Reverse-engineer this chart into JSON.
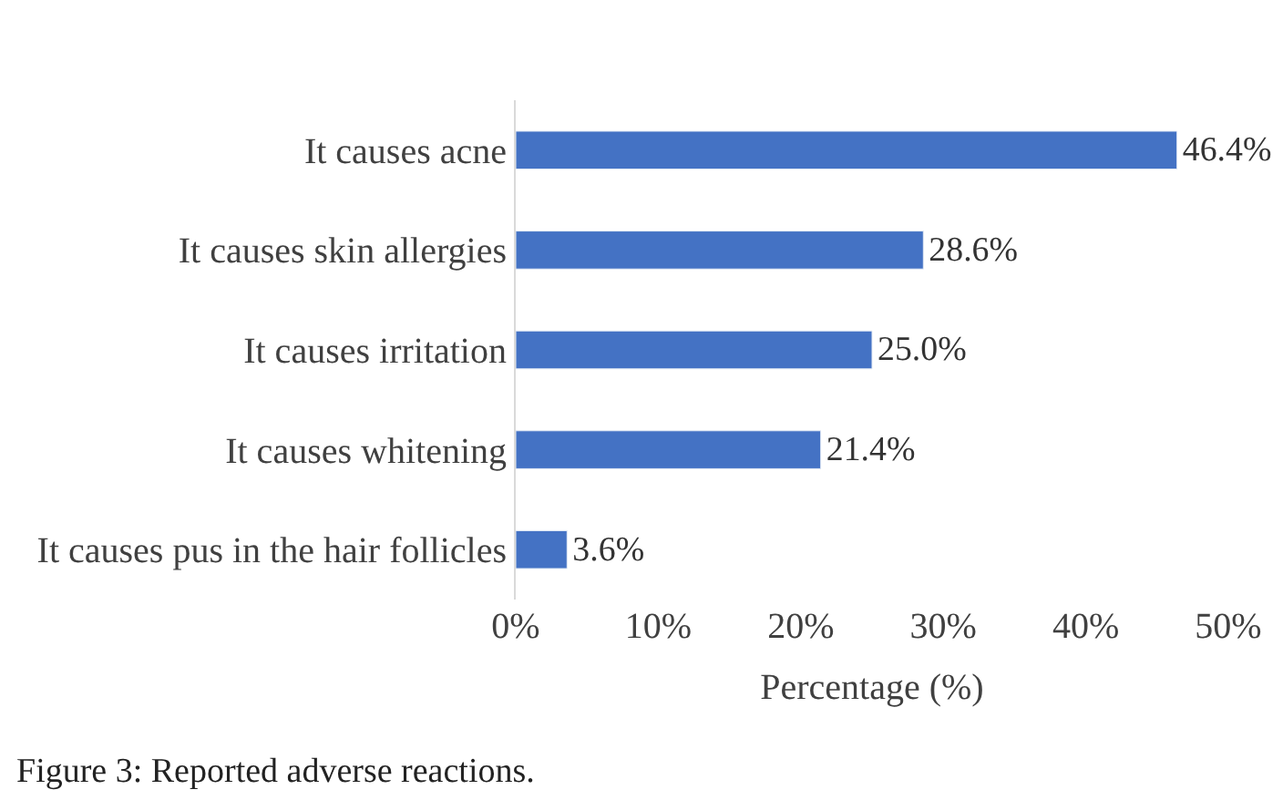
{
  "chart_data": {
    "type": "bar",
    "orientation": "horizontal",
    "xlabel": "Percentage (%)",
    "categories": [
      "It causes acne",
      "It causes skin allergies",
      "It causes irritation",
      "It causes whitening",
      "It causes pus in the hair follicles"
    ],
    "values": [
      46.4,
      28.6,
      25.0,
      21.4,
      3.6
    ],
    "value_labels": [
      "46.4%",
      "28.6%",
      "25.0%",
      "21.4%",
      "3.6%"
    ],
    "color": "#4472c4",
    "xlim": [
      0,
      50
    ],
    "xticks": [
      {
        "value": 0,
        "label": "0%"
      },
      {
        "value": 10,
        "label": "10%"
      },
      {
        "value": 20,
        "label": "20%"
      },
      {
        "value": 30,
        "label": "30%"
      },
      {
        "value": 40,
        "label": "40%"
      },
      {
        "value": 50,
        "label": "50%"
      }
    ],
    "legend": false,
    "annotations": [
      "Figure 3: Reported adverse reactions."
    ]
  }
}
